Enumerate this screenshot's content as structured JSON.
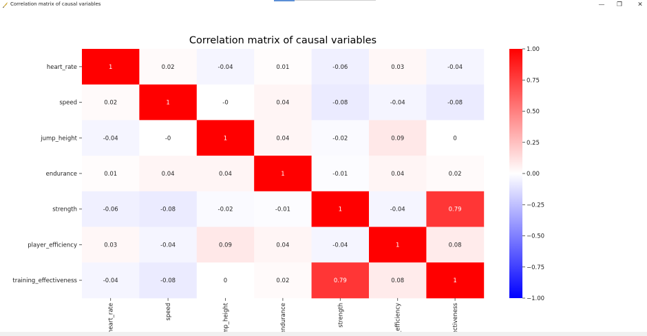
{
  "window": {
    "title": "Correlation matrix of causal variables",
    "icons": {
      "app": "matplotlib-feather-icon",
      "minimize": "minimize-icon",
      "maximize": "restore-icon",
      "close": "close-icon"
    }
  },
  "chart_data": {
    "type": "heatmap",
    "title": "Correlation matrix of causal variables",
    "row_labels": [
      "heart_rate",
      "speed",
      "jump_height",
      "endurance",
      "strength",
      "player_efficiency",
      "training_effectiveness"
    ],
    "column_labels": [
      "heart_rate",
      "speed",
      "ump_height",
      "endurance",
      "strength",
      "_efficiency",
      "ectiveness"
    ],
    "values": [
      [
        1,
        0.02,
        -0.04,
        0.01,
        -0.06,
        0.03,
        -0.04
      ],
      [
        0.02,
        1,
        0,
        0.04,
        -0.08,
        -0.04,
        -0.08
      ],
      [
        -0.04,
        0,
        1,
        0.04,
        -0.02,
        0.09,
        0
      ],
      [
        0.01,
        0.04,
        0.04,
        1,
        -0.01,
        0.04,
        0.02
      ],
      [
        -0.06,
        -0.08,
        -0.02,
        -0.01,
        1,
        -0.04,
        0.79
      ],
      [
        0.03,
        -0.04,
        0.09,
        0.04,
        -0.04,
        1,
        0.08
      ],
      [
        -0.04,
        -0.08,
        0,
        0.02,
        0.79,
        0.08,
        1
      ]
    ],
    "colormap": {
      "name": "bwr",
      "low": "#0000ff",
      "mid": "#ffffff",
      "high": "#ff0000"
    },
    "value_range": [
      -1,
      1
    ],
    "colorbar_ticks": [
      "1.00",
      "0.75",
      "0.50",
      "0.25",
      "0.00",
      "−0.25",
      "−0.50",
      "−0.75",
      "−1.00"
    ],
    "colorbar_tick_values": [
      1,
      0.75,
      0.5,
      0.25,
      0,
      -0.25,
      -0.5,
      -0.75,
      -1
    ]
  }
}
